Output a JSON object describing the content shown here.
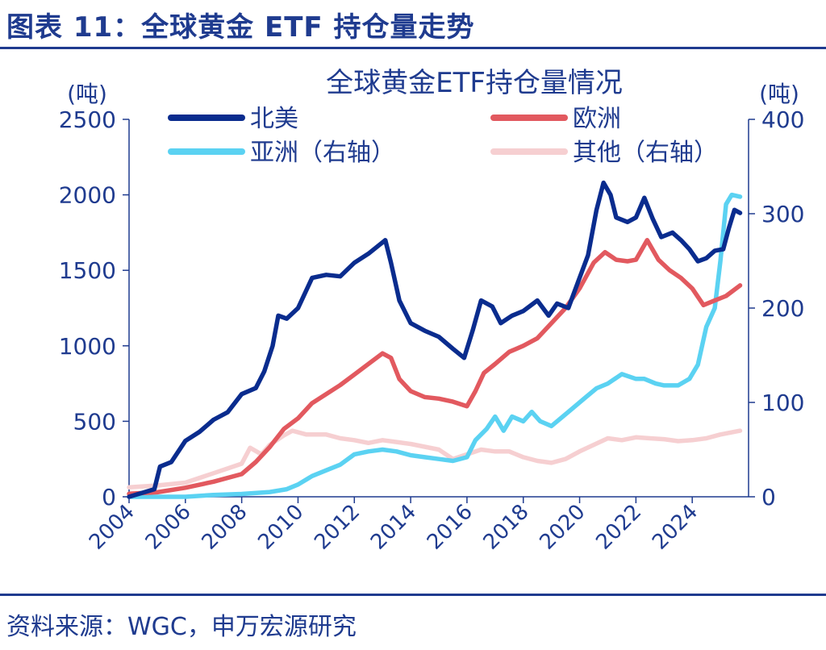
{
  "figure": {
    "title": "图表 11：全球黄金 ETF 持仓量走势",
    "source": "资料来源：WGC，申万宏源研究"
  },
  "colors": {
    "accent": "#1f3b8f",
    "north_america": "#0a2c8e",
    "europe": "#e2595f",
    "asia": "#5bd2f2",
    "other": "#f6cfd1"
  },
  "chart_data": {
    "type": "line",
    "title": "全球黄金ETF持仓量情况",
    "left_unit": "(吨)",
    "right_unit": "(吨)",
    "y_left": {
      "lim": [
        0,
        2500
      ],
      "ticks": [
        "0",
        "500",
        "1000",
        "1500",
        "2000",
        "2500"
      ]
    },
    "y_right": {
      "lim": [
        0,
        400
      ],
      "ticks": [
        "0",
        "100",
        "200",
        "300",
        "400"
      ]
    },
    "x": {
      "lim": [
        2004,
        2026
      ],
      "ticks": [
        "2004",
        "2006",
        "2008",
        "2010",
        "2012",
        "2014",
        "2016",
        "2018",
        "2020",
        "2022",
        "2024"
      ]
    },
    "legend": {
      "placement": "top"
    },
    "series": [
      {
        "name": "北美",
        "axis": "left",
        "color": "#0a2c8e",
        "points": [
          [
            2004.0,
            0
          ],
          [
            2004.9,
            50
          ],
          [
            2005.1,
            200
          ],
          [
            2005.5,
            230
          ],
          [
            2006.0,
            370
          ],
          [
            2006.5,
            430
          ],
          [
            2007.0,
            510
          ],
          [
            2007.5,
            560
          ],
          [
            2008.0,
            680
          ],
          [
            2008.5,
            720
          ],
          [
            2008.8,
            830
          ],
          [
            2009.1,
            1000
          ],
          [
            2009.3,
            1200
          ],
          [
            2009.6,
            1180
          ],
          [
            2010.0,
            1250
          ],
          [
            2010.5,
            1450
          ],
          [
            2011.0,
            1470
          ],
          [
            2011.5,
            1460
          ],
          [
            2012.0,
            1550
          ],
          [
            2012.5,
            1610
          ],
          [
            2012.9,
            1670
          ],
          [
            2013.1,
            1700
          ],
          [
            2013.3,
            1550
          ],
          [
            2013.6,
            1300
          ],
          [
            2014.0,
            1150
          ],
          [
            2014.5,
            1100
          ],
          [
            2015.0,
            1060
          ],
          [
            2015.5,
            980
          ],
          [
            2015.9,
            920
          ],
          [
            2016.2,
            1100
          ],
          [
            2016.5,
            1300
          ],
          [
            2016.9,
            1260
          ],
          [
            2017.2,
            1150
          ],
          [
            2017.6,
            1200
          ],
          [
            2018.0,
            1230
          ],
          [
            2018.5,
            1300
          ],
          [
            2018.9,
            1200
          ],
          [
            2019.2,
            1280
          ],
          [
            2019.6,
            1250
          ],
          [
            2020.0,
            1450
          ],
          [
            2020.3,
            1600
          ],
          [
            2020.6,
            1900
          ],
          [
            2020.85,
            2080
          ],
          [
            2021.1,
            2000
          ],
          [
            2021.3,
            1850
          ],
          [
            2021.7,
            1820
          ],
          [
            2022.0,
            1850
          ],
          [
            2022.3,
            1980
          ],
          [
            2022.6,
            1840
          ],
          [
            2022.9,
            1720
          ],
          [
            2023.3,
            1750
          ],
          [
            2023.6,
            1700
          ],
          [
            2023.9,
            1640
          ],
          [
            2024.2,
            1560
          ],
          [
            2024.5,
            1580
          ],
          [
            2024.8,
            1630
          ],
          [
            2025.1,
            1640
          ],
          [
            2025.3,
            1780
          ],
          [
            2025.5,
            1900
          ],
          [
            2025.7,
            1880
          ]
        ]
      },
      {
        "name": "欧洲",
        "axis": "left",
        "color": "#e2595f",
        "points": [
          [
            2004.0,
            20
          ],
          [
            2005.0,
            30
          ],
          [
            2006.0,
            60
          ],
          [
            2007.0,
            100
          ],
          [
            2008.0,
            150
          ],
          [
            2008.5,
            230
          ],
          [
            2009.0,
            330
          ],
          [
            2009.5,
            450
          ],
          [
            2010.0,
            520
          ],
          [
            2010.5,
            620
          ],
          [
            2011.0,
            680
          ],
          [
            2011.5,
            740
          ],
          [
            2012.0,
            810
          ],
          [
            2012.5,
            880
          ],
          [
            2013.0,
            950
          ],
          [
            2013.3,
            920
          ],
          [
            2013.6,
            780
          ],
          [
            2014.0,
            700
          ],
          [
            2014.5,
            660
          ],
          [
            2015.0,
            650
          ],
          [
            2015.5,
            630
          ],
          [
            2016.0,
            600
          ],
          [
            2016.3,
            700
          ],
          [
            2016.6,
            820
          ],
          [
            2017.0,
            880
          ],
          [
            2017.5,
            960
          ],
          [
            2018.0,
            1000
          ],
          [
            2018.5,
            1050
          ],
          [
            2019.0,
            1150
          ],
          [
            2019.5,
            1250
          ],
          [
            2020.0,
            1380
          ],
          [
            2020.5,
            1550
          ],
          [
            2020.9,
            1620
          ],
          [
            2021.3,
            1570
          ],
          [
            2021.7,
            1560
          ],
          [
            2022.0,
            1570
          ],
          [
            2022.4,
            1700
          ],
          [
            2022.8,
            1570
          ],
          [
            2023.2,
            1500
          ],
          [
            2023.6,
            1450
          ],
          [
            2024.0,
            1380
          ],
          [
            2024.4,
            1270
          ],
          [
            2024.8,
            1300
          ],
          [
            2025.2,
            1330
          ],
          [
            2025.7,
            1400
          ]
        ]
      },
      {
        "name": "亚洲（右轴）",
        "axis": "right",
        "color": "#5bd2f2",
        "points": [
          [
            2004.0,
            0
          ],
          [
            2006.0,
            0
          ],
          [
            2007.0,
            2
          ],
          [
            2008.0,
            3
          ],
          [
            2009.0,
            5
          ],
          [
            2009.6,
            8
          ],
          [
            2010.0,
            13
          ],
          [
            2010.5,
            22
          ],
          [
            2011.0,
            28
          ],
          [
            2011.5,
            34
          ],
          [
            2012.0,
            45
          ],
          [
            2012.5,
            48
          ],
          [
            2013.0,
            50
          ],
          [
            2013.5,
            48
          ],
          [
            2014.0,
            44
          ],
          [
            2014.5,
            42
          ],
          [
            2015.0,
            40
          ],
          [
            2015.5,
            38
          ],
          [
            2016.0,
            42
          ],
          [
            2016.3,
            60
          ],
          [
            2016.7,
            72
          ],
          [
            2017.0,
            85
          ],
          [
            2017.3,
            70
          ],
          [
            2017.6,
            85
          ],
          [
            2018.0,
            80
          ],
          [
            2018.3,
            90
          ],
          [
            2018.6,
            80
          ],
          [
            2019.0,
            75
          ],
          [
            2019.4,
            85
          ],
          [
            2019.8,
            95
          ],
          [
            2020.2,
            105
          ],
          [
            2020.6,
            115
          ],
          [
            2021.0,
            120
          ],
          [
            2021.5,
            130
          ],
          [
            2022.0,
            125
          ],
          [
            2022.3,
            125
          ],
          [
            2022.7,
            120
          ],
          [
            2023.0,
            118
          ],
          [
            2023.5,
            118
          ],
          [
            2023.9,
            125
          ],
          [
            2024.2,
            140
          ],
          [
            2024.5,
            180
          ],
          [
            2024.8,
            200
          ],
          [
            2025.0,
            250
          ],
          [
            2025.2,
            310
          ],
          [
            2025.4,
            320
          ],
          [
            2025.7,
            318
          ]
        ]
      },
      {
        "name": "其他（右轴）",
        "axis": "right",
        "color": "#f6cfd1",
        "points": [
          [
            2004.0,
            10
          ],
          [
            2005.0,
            12
          ],
          [
            2006.0,
            15
          ],
          [
            2007.0,
            25
          ],
          [
            2008.0,
            35
          ],
          [
            2008.3,
            52
          ],
          [
            2008.7,
            45
          ],
          [
            2009.0,
            55
          ],
          [
            2009.5,
            65
          ],
          [
            2009.8,
            70
          ],
          [
            2010.3,
            66
          ],
          [
            2011.0,
            66
          ],
          [
            2011.5,
            62
          ],
          [
            2012.0,
            60
          ],
          [
            2012.5,
            57
          ],
          [
            2013.0,
            60
          ],
          [
            2013.5,
            58
          ],
          [
            2014.0,
            56
          ],
          [
            2014.5,
            53
          ],
          [
            2015.0,
            50
          ],
          [
            2015.5,
            40
          ],
          [
            2016.0,
            45
          ],
          [
            2016.5,
            50
          ],
          [
            2017.0,
            48
          ],
          [
            2017.5,
            48
          ],
          [
            2018.0,
            42
          ],
          [
            2018.5,
            38
          ],
          [
            2019.0,
            36
          ],
          [
            2019.5,
            40
          ],
          [
            2020.0,
            48
          ],
          [
            2020.5,
            55
          ],
          [
            2021.0,
            62
          ],
          [
            2021.5,
            60
          ],
          [
            2022.0,
            63
          ],
          [
            2022.5,
            62
          ],
          [
            2023.0,
            61
          ],
          [
            2023.5,
            59
          ],
          [
            2024.0,
            60
          ],
          [
            2024.5,
            62
          ],
          [
            2025.0,
            66
          ],
          [
            2025.7,
            70
          ]
        ]
      }
    ]
  }
}
